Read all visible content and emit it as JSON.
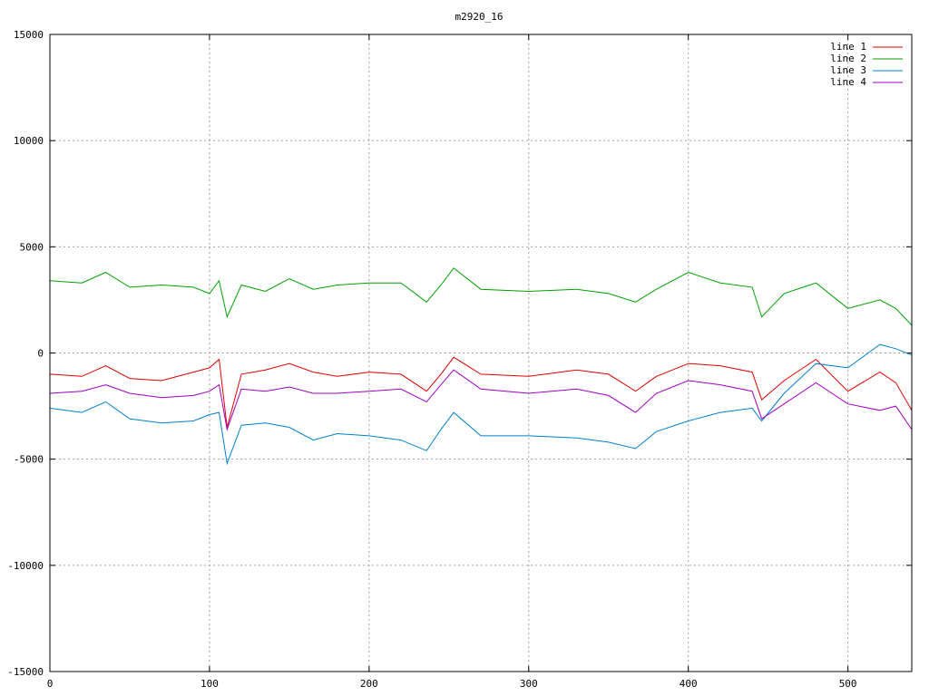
{
  "chart_data": {
    "type": "line",
    "title": "m2920_16",
    "xlabel": "",
    "ylabel": "",
    "xlim": [
      0,
      540
    ],
    "ylim": [
      -15000,
      15000
    ],
    "x_ticks": [
      0,
      100,
      200,
      300,
      400,
      500
    ],
    "y_ticks": [
      -15000,
      -10000,
      -5000,
      0,
      5000,
      10000,
      15000
    ],
    "grid": true,
    "legend_position": "top-right",
    "x": [
      0,
      20,
      35,
      50,
      70,
      90,
      100,
      106,
      111,
      120,
      135,
      150,
      165,
      180,
      200,
      220,
      236,
      245,
      253,
      270,
      300,
      330,
      350,
      367,
      380,
      400,
      420,
      440,
      446,
      460,
      480,
      500,
      520,
      530,
      540
    ],
    "series": [
      {
        "name": "line 1",
        "color": "#e00000",
        "values": [
          -1000,
          -1100,
          -600,
          -1200,
          -1300,
          -900,
          -700,
          -300,
          -3500,
          -1000,
          -800,
          -500,
          -900,
          -1100,
          -900,
          -1000,
          -1800,
          -1000,
          -200,
          -1000,
          -1100,
          -800,
          -1000,
          -1800,
          -1100,
          -500,
          -600,
          -900,
          -2200,
          -1300,
          -300,
          -1800,
          -900,
          -1400,
          -2700
        ]
      },
      {
        "name": "line 2",
        "color": "#00a000",
        "values": [
          3400,
          3300,
          3800,
          3100,
          3200,
          3100,
          2800,
          3400,
          1700,
          3200,
          2900,
          3500,
          3000,
          3200,
          3300,
          3300,
          2400,
          3200,
          4000,
          3000,
          2900,
          3000,
          2800,
          2400,
          3000,
          3800,
          3300,
          3100,
          1700,
          2800,
          3300,
          2100,
          2500,
          2100,
          1300
        ]
      },
      {
        "name": "line 3",
        "color": "#0080d0",
        "values": [
          -2600,
          -2800,
          -2300,
          -3100,
          -3300,
          -3200,
          -2900,
          -2800,
          -5200,
          -3400,
          -3300,
          -3500,
          -4100,
          -3800,
          -3900,
          -4100,
          -4600,
          -3600,
          -2800,
          -3900,
          -3900,
          -4000,
          -4200,
          -4500,
          -3700,
          -3200,
          -2800,
          -2600,
          -3200,
          -1900,
          -500,
          -700,
          400,
          200,
          -100
        ]
      },
      {
        "name": "line 4",
        "color": "#a000c0",
        "values": [
          -1900,
          -1800,
          -1500,
          -1900,
          -2100,
          -2000,
          -1800,
          -1500,
          -3600,
          -1700,
          -1800,
          -1600,
          -1900,
          -1900,
          -1800,
          -1700,
          -2300,
          -1500,
          -800,
          -1700,
          -1900,
          -1700,
          -2000,
          -2800,
          -1900,
          -1300,
          -1500,
          -1800,
          -3100,
          -2400,
          -1400,
          -2400,
          -2700,
          -2500,
          -3600
        ]
      }
    ]
  }
}
